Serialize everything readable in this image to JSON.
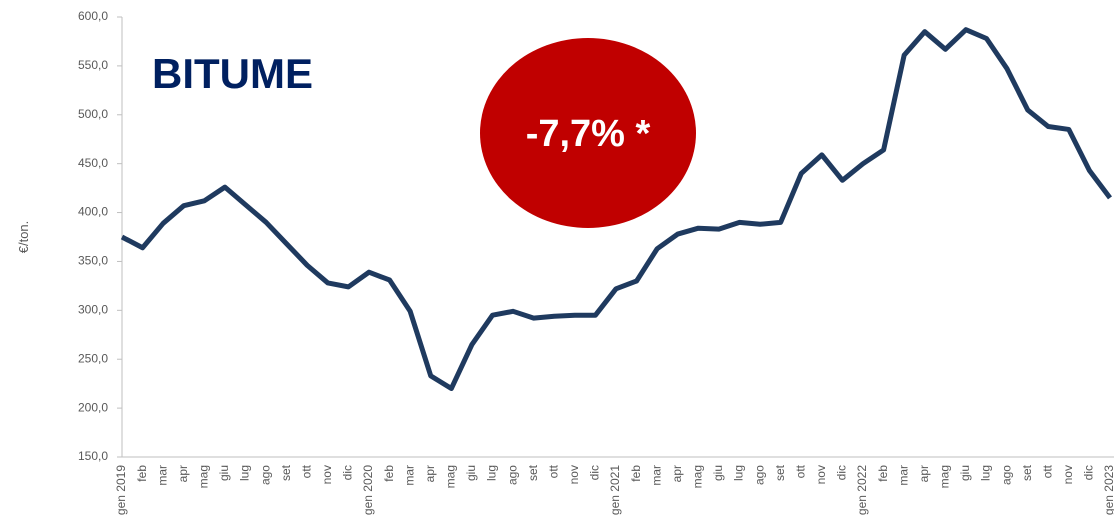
{
  "chart_data": {
    "type": "line",
    "title": "BITUME",
    "annotation": "-7,7% *",
    "y_label": "€/ton.",
    "categories": [
      "gen 2019",
      "feb",
      "mar",
      "apr",
      "mag",
      "giu",
      "lug",
      "ago",
      "set",
      "ott",
      "nov",
      "dic",
      "gen 2020",
      "feb",
      "mar",
      "apr",
      "mag",
      "giu",
      "lug",
      "ago",
      "set",
      "ott",
      "nov",
      "dic",
      "gen 2021",
      "feb",
      "mar",
      "apr",
      "mag",
      "giu",
      "lug",
      "ago",
      "set",
      "ott",
      "nov",
      "dic",
      "gen 2022",
      "feb",
      "mar",
      "apr",
      "mag",
      "giu",
      "lug",
      "ago",
      "set",
      "ott",
      "nov",
      "dic",
      "gen 2023"
    ],
    "series": [
      {
        "name": "BITUME",
        "color": "#1f3a5f",
        "values": [
          375,
          364,
          389,
          407,
          412,
          426,
          408,
          390,
          368,
          346,
          328,
          324,
          339,
          331,
          299,
          233,
          220,
          265,
          295,
          299,
          292,
          294,
          295,
          295,
          322,
          330,
          363,
          378,
          384,
          383,
          390,
          388,
          390,
          440,
          459,
          433,
          450,
          464,
          561,
          585,
          567,
          587,
          578,
          547,
          505,
          488,
          485,
          443,
          415
        ]
      }
    ],
    "ylim": [
      150,
      600
    ],
    "yticks": [
      {
        "value": 150,
        "label": "150,0"
      },
      {
        "value": 200,
        "label": "200,0"
      },
      {
        "value": 250,
        "label": "250,0"
      },
      {
        "value": 300,
        "label": "300,0"
      },
      {
        "value": 350,
        "label": "350,0"
      },
      {
        "value": 400,
        "label": "400,0"
      },
      {
        "value": 450,
        "label": "450,0"
      },
      {
        "value": 500,
        "label": "500,0"
      },
      {
        "value": 550,
        "label": "550,0"
      },
      {
        "value": 600,
        "label": "600,0"
      }
    ],
    "grid": false
  }
}
